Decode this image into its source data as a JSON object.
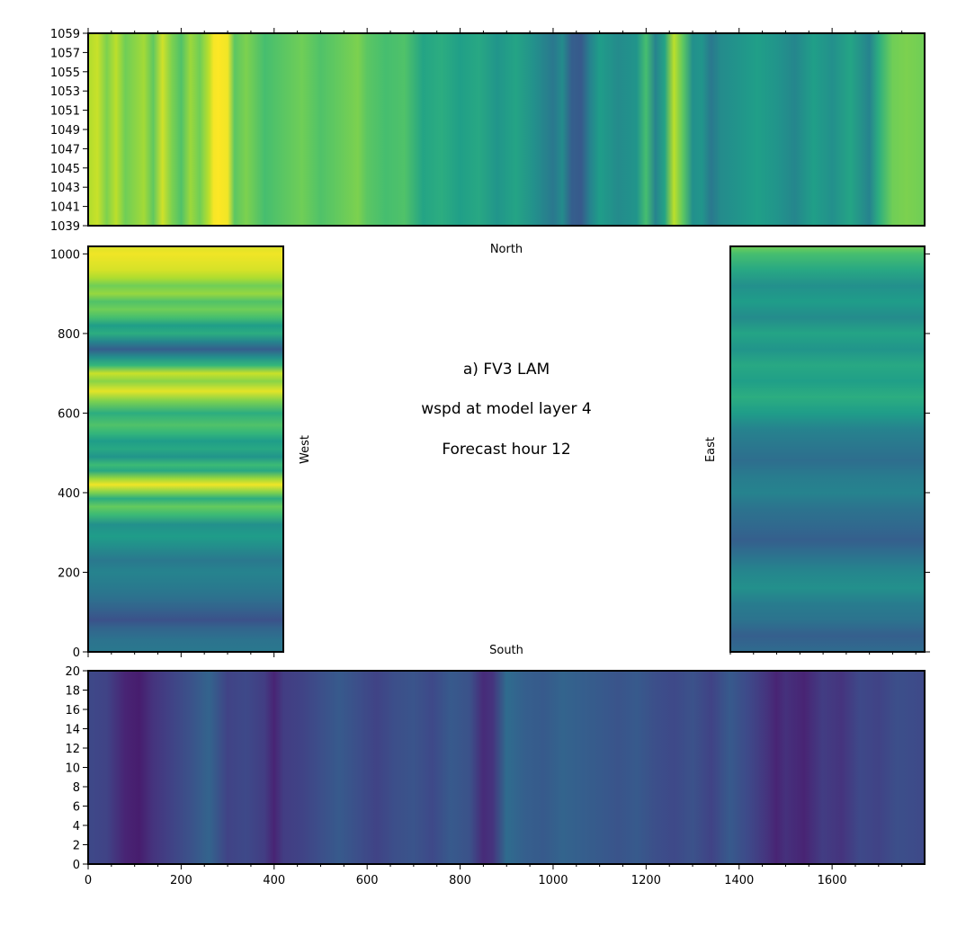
{
  "chart_data": {
    "type": "heatmap",
    "title_lines": [
      "a) FV3 LAM",
      "wspd at model layer 4",
      "Forecast hour 12"
    ],
    "colormap": "viridis",
    "boundary_labels": {
      "north": "North",
      "south": "South",
      "west": "West",
      "east": "East"
    },
    "panels": {
      "north": {
        "xlim": [
          0,
          1799
        ],
        "ylim": [
          1039,
          1059
        ],
        "yticks": [
          1039,
          1041,
          1043,
          1045,
          1047,
          1049,
          1051,
          1053,
          1055,
          1057,
          1059
        ],
        "xticks": [
          0,
          200,
          400,
          600,
          800,
          1000,
          1200,
          1400,
          1600
        ],
        "stripes_along_x_0to1": [
          [
            0,
            0.88
          ],
          [
            20,
            0.92
          ],
          [
            40,
            0.8
          ],
          [
            60,
            0.9
          ],
          [
            80,
            0.78
          ],
          [
            100,
            0.82
          ],
          [
            120,
            0.86
          ],
          [
            140,
            0.75
          ],
          [
            160,
            0.93
          ],
          [
            180,
            0.8
          ],
          [
            200,
            0.72
          ],
          [
            220,
            0.85
          ],
          [
            240,
            0.78
          ],
          [
            260,
            0.9
          ],
          [
            270,
            0.99
          ],
          [
            280,
            1.0
          ],
          [
            300,
            0.98
          ],
          [
            315,
            0.74
          ],
          [
            340,
            0.8
          ],
          [
            380,
            0.7
          ],
          [
            420,
            0.74
          ],
          [
            460,
            0.78
          ],
          [
            500,
            0.72
          ],
          [
            540,
            0.76
          ],
          [
            580,
            0.8
          ],
          [
            600,
            0.74
          ],
          [
            640,
            0.7
          ],
          [
            680,
            0.72
          ],
          [
            720,
            0.58
          ],
          [
            760,
            0.62
          ],
          [
            800,
            0.56
          ],
          [
            840,
            0.6
          ],
          [
            880,
            0.52
          ],
          [
            920,
            0.58
          ],
          [
            960,
            0.5
          ],
          [
            1000,
            0.4
          ],
          [
            1020,
            0.48
          ],
          [
            1040,
            0.3
          ],
          [
            1060,
            0.28
          ],
          [
            1080,
            0.45
          ],
          [
            1100,
            0.55
          ],
          [
            1140,
            0.48
          ],
          [
            1180,
            0.52
          ],
          [
            1200,
            0.7
          ],
          [
            1220,
            0.45
          ],
          [
            1240,
            0.58
          ],
          [
            1260,
            0.9
          ],
          [
            1280,
            0.74
          ],
          [
            1300,
            0.5
          ],
          [
            1320,
            0.52
          ],
          [
            1340,
            0.4
          ],
          [
            1360,
            0.48
          ],
          [
            1400,
            0.52
          ],
          [
            1440,
            0.56
          ],
          [
            1480,
            0.52
          ],
          [
            1520,
            0.46
          ],
          [
            1560,
            0.56
          ],
          [
            1600,
            0.5
          ],
          [
            1640,
            0.58
          ],
          [
            1680,
            0.45
          ],
          [
            1700,
            0.62
          ],
          [
            1730,
            0.78
          ],
          [
            1760,
            0.8
          ],
          [
            1799,
            0.78
          ]
        ]
      },
      "west": {
        "xlim": [
          0,
          420
        ],
        "ylim": [
          0,
          1019
        ],
        "yticks": [
          0,
          200,
          400,
          600,
          800,
          1000
        ],
        "bands_along_y_0to1": [
          [
            0,
            0.4
          ],
          [
            30,
            0.38
          ],
          [
            60,
            0.32
          ],
          [
            80,
            0.25
          ],
          [
            110,
            0.32
          ],
          [
            140,
            0.38
          ],
          [
            170,
            0.42
          ],
          [
            200,
            0.45
          ],
          [
            230,
            0.4
          ],
          [
            260,
            0.48
          ],
          [
            290,
            0.55
          ],
          [
            320,
            0.5
          ],
          [
            345,
            0.68
          ],
          [
            365,
            0.76
          ],
          [
            385,
            0.62
          ],
          [
            400,
            0.8
          ],
          [
            420,
            0.98
          ],
          [
            435,
            0.85
          ],
          [
            455,
            0.6
          ],
          [
            470,
            0.68
          ],
          [
            490,
            0.52
          ],
          [
            510,
            0.6
          ],
          [
            530,
            0.55
          ],
          [
            550,
            0.66
          ],
          [
            570,
            0.72
          ],
          [
            600,
            0.62
          ],
          [
            630,
            0.8
          ],
          [
            655,
            0.96
          ],
          [
            680,
            0.82
          ],
          [
            700,
            0.92
          ],
          [
            720,
            0.66
          ],
          [
            740,
            0.5
          ],
          [
            760,
            0.3
          ],
          [
            780,
            0.46
          ],
          [
            800,
            0.62
          ],
          [
            820,
            0.55
          ],
          [
            840,
            0.7
          ],
          [
            860,
            0.78
          ],
          [
            880,
            0.72
          ],
          [
            900,
            0.84
          ],
          [
            920,
            0.78
          ],
          [
            940,
            0.88
          ],
          [
            960,
            0.94
          ],
          [
            980,
            0.96
          ],
          [
            1000,
            0.98
          ],
          [
            1019,
            0.95
          ]
        ]
      },
      "east": {
        "xlim": [
          1380,
          1799
        ],
        "ylim": [
          0,
          1019
        ],
        "bands_along_y_0to1": [
          [
            0,
            0.35
          ],
          [
            40,
            0.3
          ],
          [
            80,
            0.38
          ],
          [
            120,
            0.42
          ],
          [
            160,
            0.5
          ],
          [
            200,
            0.46
          ],
          [
            240,
            0.38
          ],
          [
            280,
            0.3
          ],
          [
            320,
            0.34
          ],
          [
            360,
            0.38
          ],
          [
            400,
            0.45
          ],
          [
            440,
            0.42
          ],
          [
            480,
            0.36
          ],
          [
            520,
            0.4
          ],
          [
            560,
            0.45
          ],
          [
            600,
            0.55
          ],
          [
            640,
            0.62
          ],
          [
            680,
            0.56
          ],
          [
            720,
            0.6
          ],
          [
            760,
            0.52
          ],
          [
            800,
            0.58
          ],
          [
            840,
            0.48
          ],
          [
            880,
            0.55
          ],
          [
            920,
            0.5
          ],
          [
            960,
            0.6
          ],
          [
            1000,
            0.7
          ],
          [
            1019,
            0.78
          ]
        ]
      },
      "south": {
        "xlim": [
          0,
          1799
        ],
        "ylim": [
          0,
          20
        ],
        "yticks": [
          0,
          2,
          4,
          6,
          8,
          10,
          12,
          14,
          16,
          18,
          20
        ],
        "xticks": [
          0,
          200,
          400,
          600,
          800,
          1000,
          1200,
          1400,
          1600
        ],
        "stripes_along_x_0to1": [
          [
            0,
            0.22
          ],
          [
            40,
            0.2
          ],
          [
            80,
            0.1
          ],
          [
            110,
            0.08
          ],
          [
            140,
            0.15
          ],
          [
            180,
            0.2
          ],
          [
            220,
            0.25
          ],
          [
            260,
            0.32
          ],
          [
            300,
            0.2
          ],
          [
            340,
            0.22
          ],
          [
            380,
            0.18
          ],
          [
            400,
            0.1
          ],
          [
            420,
            0.18
          ],
          [
            460,
            0.2
          ],
          [
            500,
            0.24
          ],
          [
            540,
            0.28
          ],
          [
            580,
            0.24
          ],
          [
            620,
            0.2
          ],
          [
            660,
            0.24
          ],
          [
            700,
            0.26
          ],
          [
            740,
            0.22
          ],
          [
            780,
            0.28
          ],
          [
            820,
            0.25
          ],
          [
            850,
            0.12
          ],
          [
            870,
            0.15
          ],
          [
            900,
            0.35
          ],
          [
            940,
            0.3
          ],
          [
            980,
            0.28
          ],
          [
            1020,
            0.32
          ],
          [
            1060,
            0.3
          ],
          [
            1100,
            0.28
          ],
          [
            1140,
            0.26
          ],
          [
            1180,
            0.28
          ],
          [
            1220,
            0.24
          ],
          [
            1260,
            0.22
          ],
          [
            1300,
            0.25
          ],
          [
            1340,
            0.2
          ],
          [
            1380,
            0.28
          ],
          [
            1420,
            0.22
          ],
          [
            1460,
            0.15
          ],
          [
            1480,
            0.1
          ],
          [
            1500,
            0.14
          ],
          [
            1540,
            0.1
          ],
          [
            1580,
            0.18
          ],
          [
            1620,
            0.15
          ],
          [
            1660,
            0.22
          ],
          [
            1700,
            0.2
          ],
          [
            1740,
            0.24
          ],
          [
            1799,
            0.22
          ]
        ]
      }
    }
  }
}
